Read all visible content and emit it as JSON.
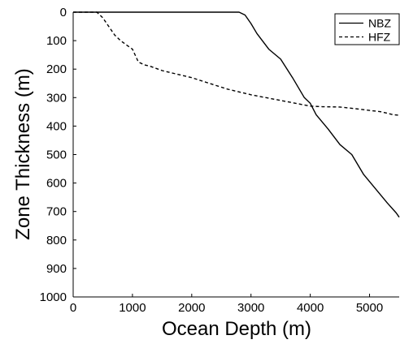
{
  "chart_data": {
    "type": "line",
    "title": "",
    "xlabel": "Ocean Depth (m)",
    "ylabel": "Zone Thickness (m)",
    "xlim": [
      0,
      5500
    ],
    "ylim": [
      0,
      1000
    ],
    "y_inverted": true,
    "x_ticks": [
      0,
      1000,
      2000,
      3000,
      4000,
      5000
    ],
    "y_ticks": [
      0,
      100,
      200,
      300,
      400,
      500,
      600,
      700,
      800,
      900,
      1000
    ],
    "grid": false,
    "legend_position": "top-right",
    "series": [
      {
        "name": "NBZ",
        "line_style": "solid",
        "color": "#000000",
        "x": [
          0,
          2800,
          2900,
          3000,
          3100,
          3300,
          3500,
          3700,
          3900,
          4000,
          4100,
          4300,
          4500,
          4700,
          4900,
          5100,
          5300,
          5450,
          5500
        ],
        "y": [
          0,
          0,
          10,
          40,
          75,
          130,
          165,
          230,
          300,
          320,
          360,
          410,
          465,
          500,
          570,
          620,
          670,
          705,
          720
        ]
      },
      {
        "name": "HFZ",
        "line_style": "dashed",
        "color": "#000000",
        "x": [
          0,
          400,
          500,
          600,
          700,
          800,
          900,
          1000,
          1100,
          1200,
          1300,
          1500,
          1700,
          2000,
          2300,
          2600,
          3000,
          3500,
          4000,
          4200,
          4500,
          4800,
          5000,
          5200,
          5400,
          5500
        ],
        "y": [
          0,
          0,
          20,
          50,
          80,
          100,
          115,
          130,
          175,
          185,
          190,
          205,
          215,
          230,
          250,
          270,
          290,
          310,
          330,
          332,
          333,
          340,
          345,
          350,
          360,
          362
        ]
      }
    ]
  }
}
